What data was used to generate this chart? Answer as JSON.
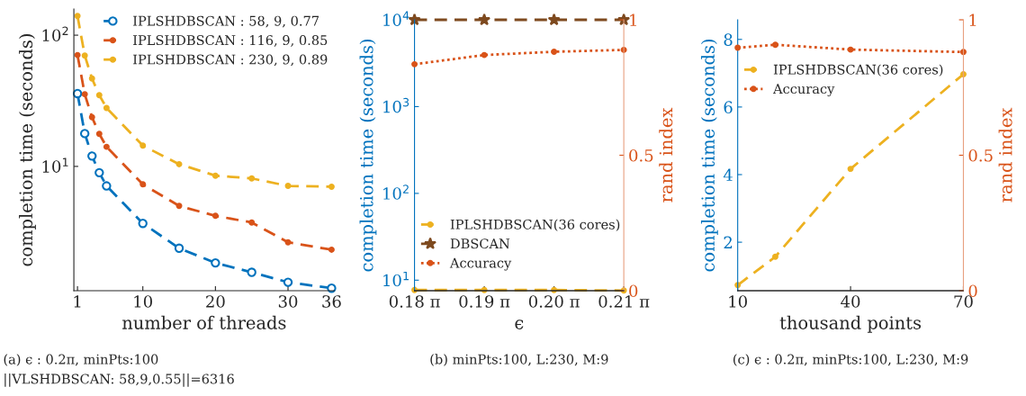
{
  "chart_data": [
    {
      "type": "line",
      "xlabel": "number of threads",
      "ylabel": "completion time (seconds)",
      "log": "y",
      "legend": "top right",
      "x": [
        1,
        2,
        3,
        4,
        5,
        10,
        15,
        20,
        25,
        30,
        36
      ],
      "xlim": [
        0.5,
        36.4
      ],
      "xticks": [
        1,
        10,
        20,
        30,
        36
      ],
      "ylim": [
        1.13,
        158
      ],
      "yticks": [
        {
          "value": 10,
          "label": "10$^{1}$"
        },
        {
          "value": 100,
          "label": "10$^{2}$"
        }
      ],
      "series": [
        {
          "name": "IPLSHDBSCAN : 58, 9, 0.77",
          "color": "#0072bd",
          "marker": "circle",
          "line_style": "dashed",
          "values": [
            35.9,
            17.8,
            12.0,
            8.96,
            7.1,
            3.68,
            2.38,
            1.84,
            1.56,
            1.31,
            1.18
          ]
        },
        {
          "name": "IPLSHDBSCAN : 116, 9, 0.85",
          "color": "#d95319",
          "marker": "circle",
          "line_style": "dashed",
          "values": [
            70.6,
            35.5,
            23.7,
            17.7,
            14.1,
            7.3,
            5.0,
            4.2,
            3.74,
            2.64,
            2.32
          ]
        },
        {
          "name": "IPLSHDBSCAN : 230, 9, 0.89",
          "color": "#edb120",
          "marker": "circle",
          "line_style": "dashed",
          "values": [
            140,
            70,
            46.7,
            34.9,
            27.9,
            14.4,
            10.4,
            8.5,
            8.1,
            7.1,
            7.0
          ]
        }
      ],
      "annotations": [
        "(a) ϵ : 0.2π, minPts:100",
        "||VLSHDBSCAN: 58,9,0.55||=6316"
      ]
    },
    {
      "type": "line",
      "xlabel": "ϵ",
      "ylabel": "completion time (seconds)",
      "y2label": "rand index",
      "log": "y",
      "legend": "bottom left",
      "categories": [
        "0.18 π",
        "0.19 π",
        "0.20 π",
        "0.21 π"
      ],
      "ylim": [
        7.57,
        10000
      ],
      "yticks": [
        {
          "value": 10,
          "label": "10$^{1}$"
        },
        {
          "value": 100,
          "label": "10$^{2}$"
        },
        {
          "value": 1000,
          "label": "10$^{3}$"
        },
        {
          "value": 10000,
          "label": "10$^{4}$"
        }
      ],
      "y2lim": [
        0,
        1
      ],
      "y2ticks": [
        0,
        0.5,
        1
      ],
      "series": [
        {
          "name": "IPLSHDBSCAN(36 cores)",
          "color": "#edb120",
          "marker": "circle",
          "line_style": "dashed",
          "values": [
            7.7,
            7.7,
            7.7,
            7.6
          ]
        },
        {
          "name": "DBSCAN",
          "color": "#7e4a1f",
          "marker": "star",
          "line_style": "dashed",
          "values": [
            10000,
            10000,
            10000,
            10000
          ]
        },
        {
          "name": "Accuracy",
          "color": "#d95319",
          "marker": "circle",
          "line_style": "dotted",
          "axis": "y2",
          "values": [
            0.836,
            0.87,
            0.882,
            0.889
          ]
        }
      ],
      "annotations": [
        "(b) minPts:100, L:230, M:9"
      ]
    },
    {
      "type": "line",
      "xlabel": "thousand points",
      "ylabel": "completion time (seconds)",
      "y2label": "rand index",
      "legend": "top left",
      "x": [
        10,
        20,
        40,
        70
      ],
      "xlim": [
        10,
        70
      ],
      "xticks": [
        10,
        40,
        70
      ],
      "ylim": [
        0.566,
        8.58
      ],
      "yticks": [
        2,
        4,
        6,
        8
      ],
      "y2lim": [
        0,
        1
      ],
      "y2ticks": [
        0,
        0.5,
        1
      ],
      "series": [
        {
          "name": "IPLSHDBSCAN(36 cores)",
          "color": "#edb120",
          "marker": "circle",
          "line_style": "dashed",
          "values": [
            0.73,
            1.57,
            4.17,
            6.97
          ]
        },
        {
          "name": "Accuracy",
          "color": "#d95319",
          "marker": "circle",
          "line_style": "dotted",
          "axis": "y2",
          "values": [
            0.897,
            0.908,
            0.89,
            0.881
          ]
        }
      ],
      "annotations": [
        "(c) ϵ : 0.2π, minPts:100, L:230, M:9"
      ]
    }
  ]
}
